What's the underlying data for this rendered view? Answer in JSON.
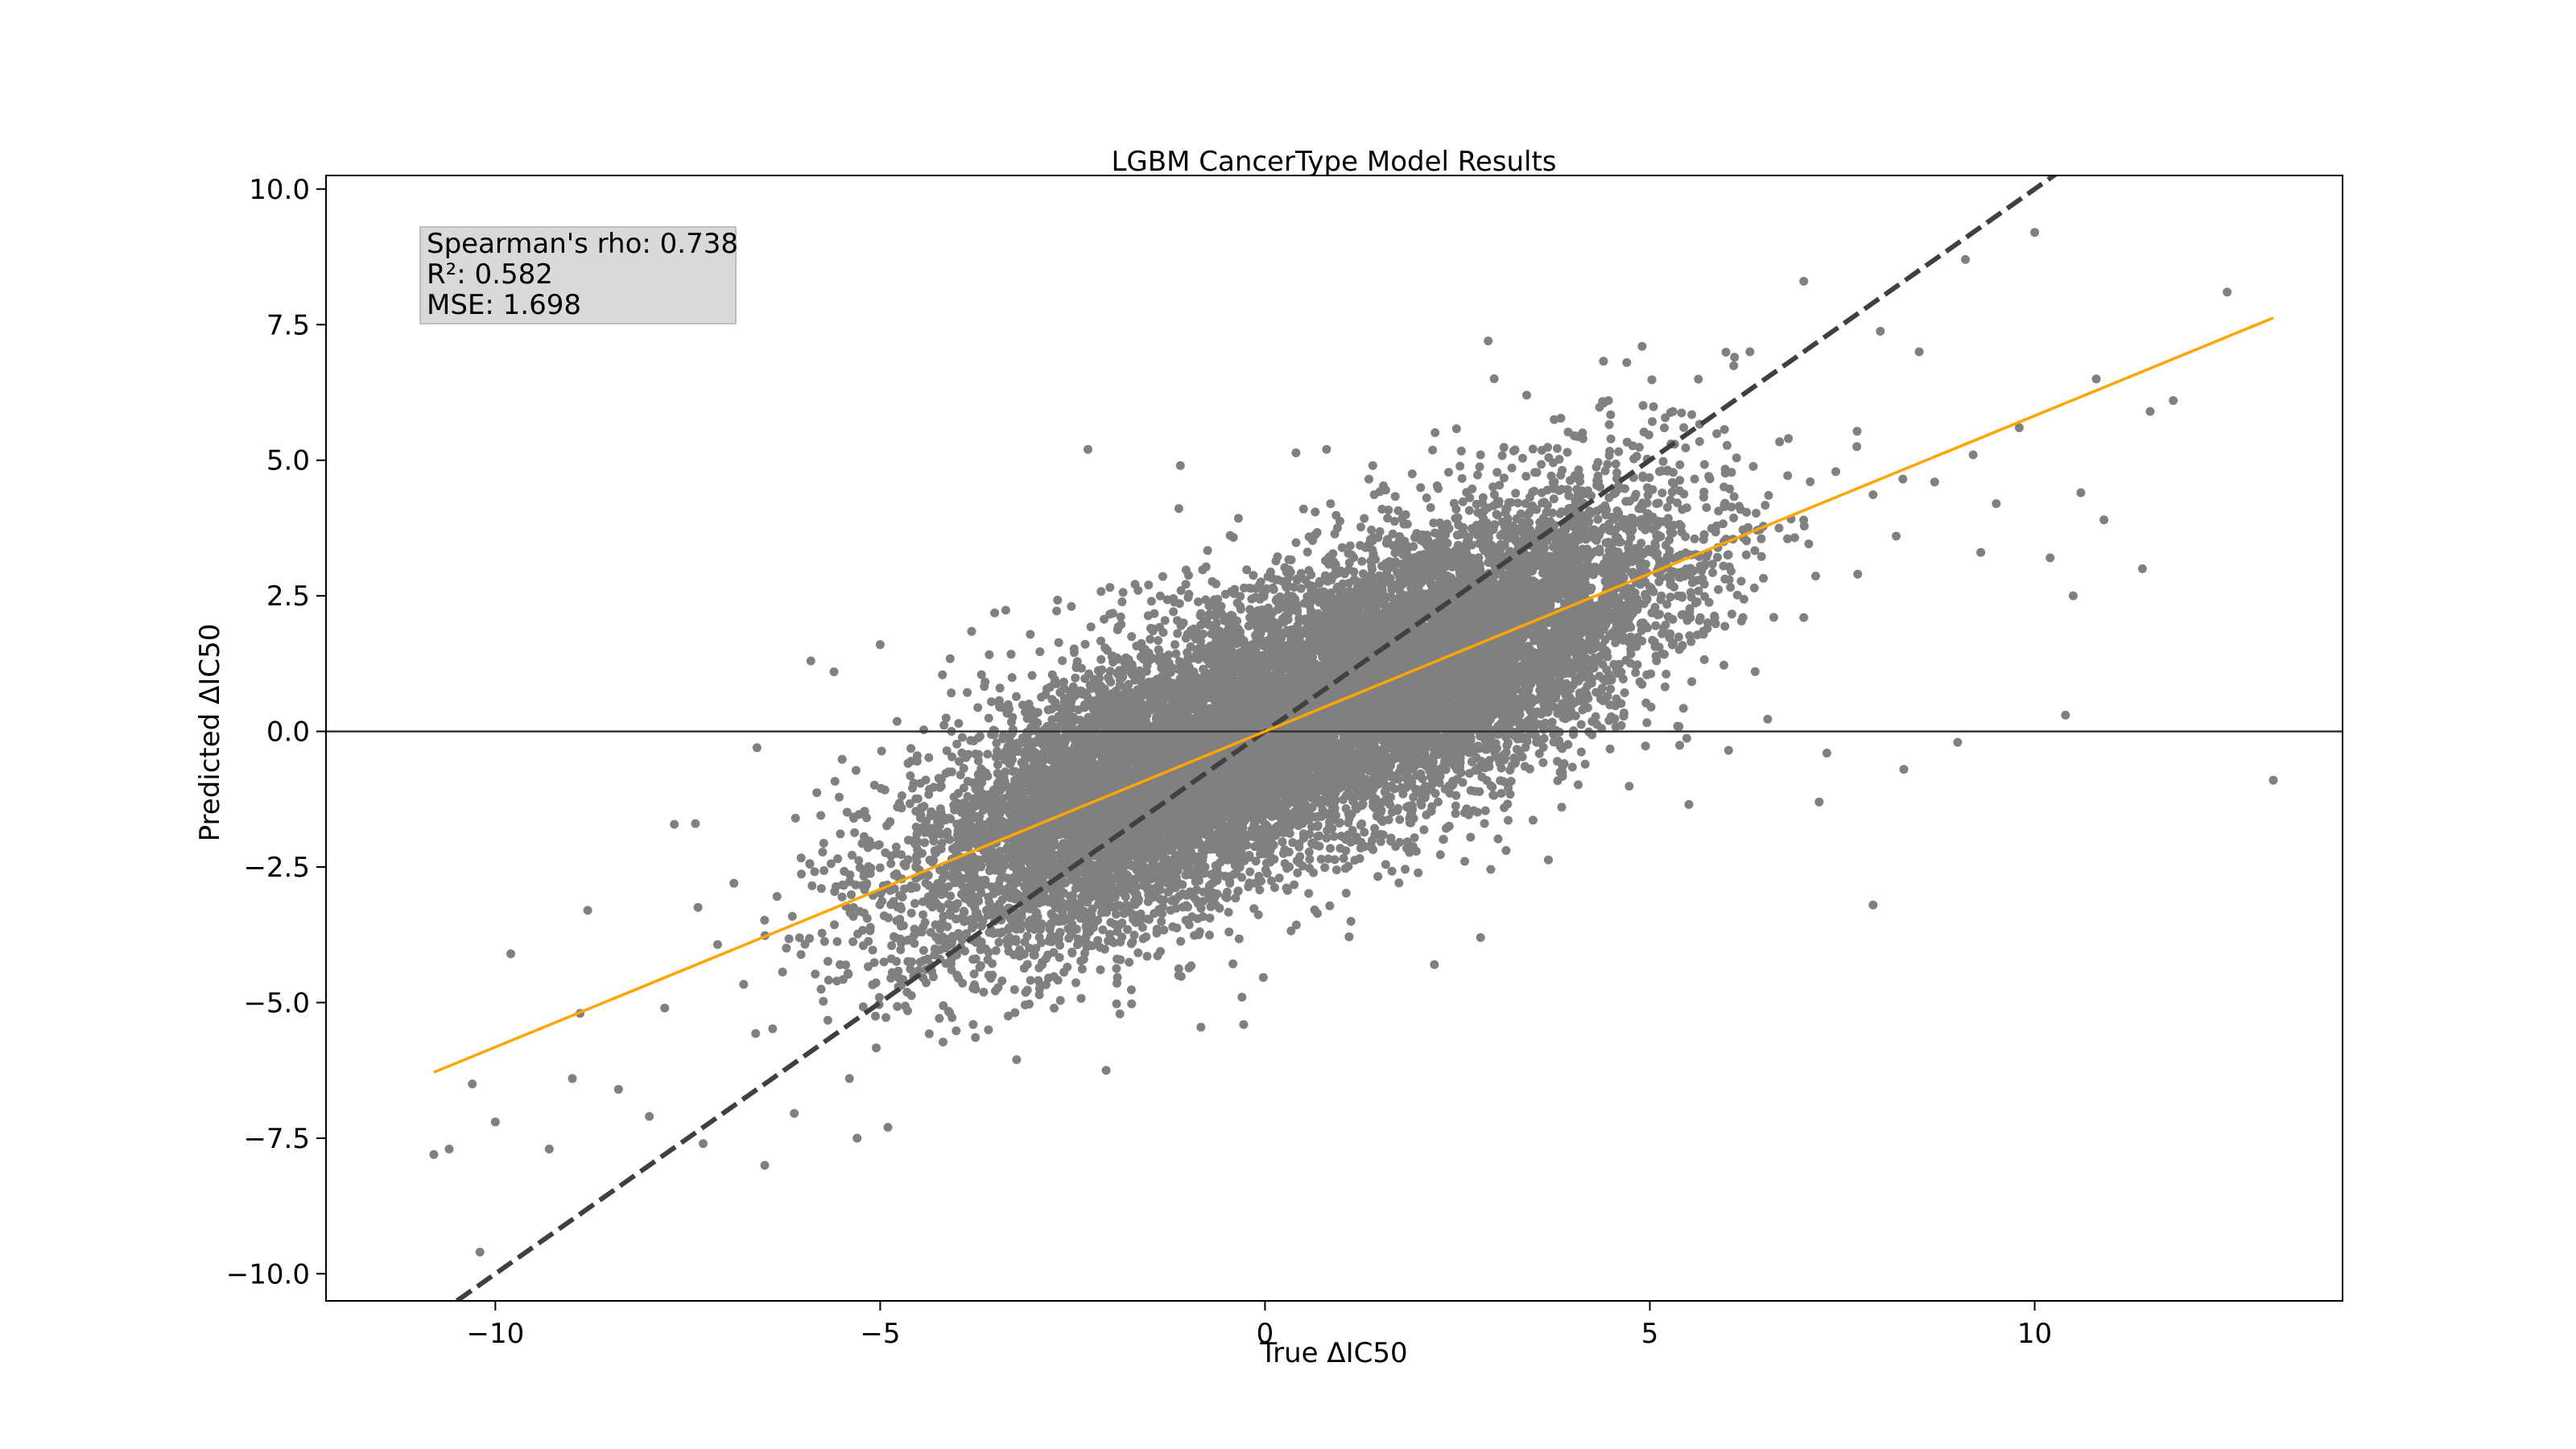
{
  "chart_data": {
    "type": "scatter",
    "title": "LGBM CancerType Model Results",
    "xlabel": "True ΔIC50",
    "ylabel": "Predicted ΔIC50",
    "xlim": [
      -12.2,
      14.0
    ],
    "ylim": [
      -10.5,
      10.25
    ],
    "xticks": [
      -10,
      -5,
      0,
      5,
      10
    ],
    "yticks": [
      -10.0,
      -7.5,
      -5.0,
      -2.5,
      0.0,
      2.5,
      5.0,
      7.5,
      10.0
    ],
    "xtick_labels": [
      "−10",
      "−5",
      "0",
      "5",
      "10"
    ],
    "ytick_labels": [
      "−10.0",
      "−7.5",
      "−5.0",
      "−2.5",
      "0.0",
      "2.5",
      "5.0",
      "7.5",
      "10.0"
    ],
    "grid": false,
    "stats": {
      "spearman": "Spearman's rho: 0.738",
      "r2": "R²: 0.582",
      "mse": "MSE: 1.698"
    },
    "point_color": "#808080",
    "fit_line": {
      "slope": 0.582,
      "intercept": 0.0,
      "x_range": [
        -10.8,
        13.1
      ],
      "color": "#FFA500"
    },
    "identity_line": {
      "x_range": [
        -10.5,
        10.3
      ],
      "color": "#404040",
      "dashed": true
    },
    "zero_line": {
      "y": 0,
      "color": "#333333"
    },
    "cloud": {
      "n_points": 14000,
      "x_clusters": [
        {
          "mean": -1.5,
          "sd": 1.6,
          "weight": 0.5
        },
        {
          "mean": 2.2,
          "sd": 1.6,
          "weight": 0.5
        }
      ],
      "y_model": {
        "slope": 0.582,
        "intercept": 0.0,
        "noise_sd": 1.25
      }
    },
    "outliers": [
      [
        -10.8,
        -7.8
      ],
      [
        -10.6,
        -7.7
      ],
      [
        -10.3,
        -6.5
      ],
      [
        -10.2,
        -9.6
      ],
      [
        -10.0,
        -7.2
      ],
      [
        -9.8,
        -4.1
      ],
      [
        -9.3,
        -7.7
      ],
      [
        -9.0,
        -6.4
      ],
      [
        -8.9,
        -5.2
      ],
      [
        -8.8,
        -3.3
      ],
      [
        -8.4,
        -6.6
      ],
      [
        -8.0,
        -7.1
      ],
      [
        -7.8,
        -5.1
      ],
      [
        -7.4,
        -1.7
      ],
      [
        -7.3,
        -7.6
      ],
      [
        -6.9,
        -2.8
      ],
      [
        -6.6,
        -0.3
      ],
      [
        -6.5,
        -8.0
      ],
      [
        -6.1,
        -1.6
      ],
      [
        -5.9,
        1.3
      ],
      [
        -5.6,
        1.1
      ],
      [
        -5.3,
        -7.5
      ],
      [
        -5.0,
        1.6
      ],
      [
        -4.9,
        -7.3
      ],
      [
        -5.4,
        -6.4
      ],
      [
        -2.3,
        5.2
      ],
      [
        -1.1,
        4.9
      ],
      [
        -0.3,
        -4.9
      ],
      [
        0.5,
        4.1
      ],
      [
        0.8,
        5.2
      ],
      [
        1.4,
        4.9
      ],
      [
        2.2,
        -4.3
      ],
      [
        2.9,
        7.2
      ],
      [
        2.8,
        5.1
      ],
      [
        2.8,
        -3.8
      ],
      [
        3.4,
        6.2
      ],
      [
        4.7,
        6.8
      ],
      [
        4.9,
        7.1
      ],
      [
        5.3,
        5.9
      ],
      [
        6.1,
        6.9
      ],
      [
        6.3,
        7.0
      ],
      [
        7.0,
        8.3
      ],
      [
        7.0,
        2.1
      ],
      [
        7.2,
        -1.3
      ],
      [
        7.3,
        -0.4
      ],
      [
        7.7,
        2.9
      ],
      [
        7.9,
        -3.2
      ],
      [
        8.3,
        -0.7
      ],
      [
        8.5,
        7.0
      ],
      [
        9.1,
        8.7
      ],
      [
        9.2,
        5.1
      ],
      [
        9.3,
        3.3
      ],
      [
        9.5,
        4.2
      ],
      [
        9.8,
        5.6
      ],
      [
        10.0,
        9.2
      ],
      [
        10.2,
        3.2
      ],
      [
        10.4,
        0.3
      ],
      [
        10.5,
        2.5
      ],
      [
        10.6,
        4.4
      ],
      [
        10.8,
        6.5
      ],
      [
        10.9,
        3.9
      ],
      [
        11.4,
        3.0
      ],
      [
        11.5,
        5.9
      ],
      [
        11.8,
        6.1
      ],
      [
        12.5,
        8.1
      ],
      [
        13.1,
        -0.9
      ],
      [
        8.7,
        4.6
      ],
      [
        8.2,
        3.6
      ],
      [
        9.0,
        -0.2
      ],
      [
        6.8,
        5.4
      ]
    ]
  }
}
